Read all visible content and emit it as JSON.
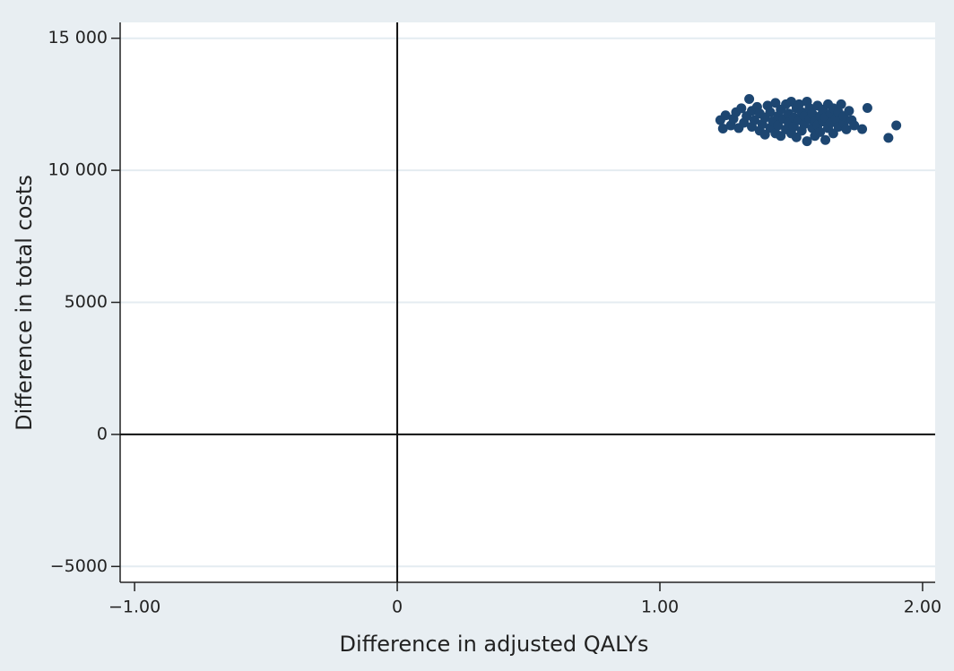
{
  "chart_data": {
    "type": "scatter",
    "xlabel": "Difference in adjusted QALYs",
    "ylabel": "Difference in total costs",
    "x": [
      1.23,
      1.24,
      1.25,
      1.27,
      1.28,
      1.29,
      1.3,
      1.31,
      1.32,
      1.33,
      1.34,
      1.35,
      1.35,
      1.36,
      1.37,
      1.38,
      1.38,
      1.39,
      1.4,
      1.4,
      1.41,
      1.42,
      1.42,
      1.43,
      1.44,
      1.44,
      1.45,
      1.45,
      1.46,
      1.46,
      1.47,
      1.48,
      1.48,
      1.49,
      1.49,
      1.5,
      1.5,
      1.51,
      1.51,
      1.52,
      1.52,
      1.53,
      1.53,
      1.54,
      1.54,
      1.55,
      1.55,
      1.56,
      1.56,
      1.57,
      1.57,
      1.58,
      1.58,
      1.59,
      1.59,
      1.6,
      1.6,
      1.61,
      1.61,
      1.62,
      1.62,
      1.63,
      1.63,
      1.64,
      1.64,
      1.65,
      1.65,
      1.66,
      1.66,
      1.67,
      1.68,
      1.68,
      1.69,
      1.7,
      1.7,
      1.71,
      1.72,
      1.73,
      1.74,
      1.77,
      1.79,
      1.87,
      1.9
    ],
    "values": [
      11900,
      11580,
      12080,
      11700,
      11950,
      12200,
      11600,
      12350,
      11800,
      12050,
      12700,
      11650,
      12250,
      11900,
      12400,
      11500,
      12150,
      11750,
      12000,
      11350,
      12450,
      11600,
      12200,
      11850,
      12550,
      11400,
      12050,
      11700,
      12300,
      11300,
      11950,
      12500,
      11550,
      12150,
      11800,
      12600,
      11400,
      12000,
      11650,
      12350,
      11250,
      11900,
      12500,
      11500,
      12200,
      11750,
      12050,
      12600,
      11100,
      11950,
      12350,
      11600,
      12150,
      11300,
      11850,
      12450,
      11700,
      12050,
      11450,
      12300,
      11850,
      11150,
      12000,
      12500,
      11600,
      12150,
      11800,
      11400,
      12350,
      11950,
      11650,
      12200,
      12500,
      11800,
      12050,
      11550,
      12250,
      11900,
      11700,
      11560,
      12360,
      11230,
      11700
    ],
    "color": "#1d4671",
    "xlim": [
      -1.055,
      2.048
    ],
    "ylim": [
      -5600,
      15600
    ],
    "xticks": [
      {
        "value": -1,
        "label": "−1.00"
      },
      0,
      {
        "value": 1,
        "label": "1.00"
      },
      {
        "value": 2,
        "label": "2.00"
      }
    ],
    "yticks": [
      {
        "value": -5000,
        "label": "−5000"
      },
      0,
      5000,
      {
        "value": 10000,
        "label": "10 000"
      },
      {
        "value": 15000,
        "label": "15 000"
      }
    ],
    "grid": true
  }
}
